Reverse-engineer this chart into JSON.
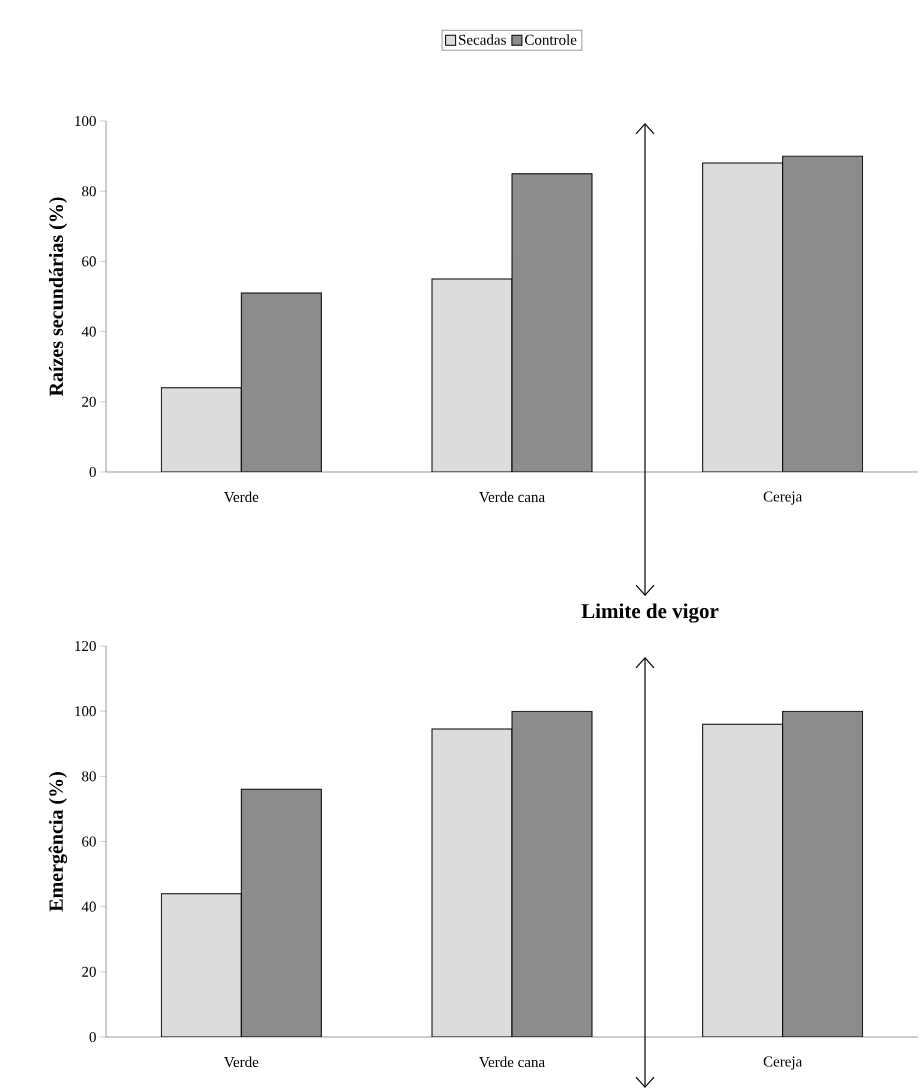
{
  "chart_data": [
    {
      "type": "bar",
      "categories": [
        "Verde",
        "Verde cana",
        "Cereja"
      ],
      "ylabel": "Raízes secundárias (%)",
      "ylim": [
        0,
        100
      ],
      "yticks": [
        0,
        20,
        40,
        60,
        80,
        100
      ],
      "legend": "top",
      "grid": false,
      "series": [
        {
          "name": "Secadas",
          "color": "#dcdcdc",
          "values": [
            24,
            55,
            88
          ]
        },
        {
          "name": "Controle",
          "color": "#8c8c8c",
          "values": [
            51,
            85,
            90
          ]
        }
      ]
    },
    {
      "type": "bar",
      "categories": [
        "Verde",
        "Verde cana",
        "Cereja"
      ],
      "ylabel": "Emergência (%)",
      "ylim": [
        0,
        120
      ],
      "yticks": [
        0,
        20,
        40,
        60,
        80,
        100,
        120
      ],
      "grid": false,
      "annotations": [
        "Limite de vigor"
      ],
      "series": [
        {
          "color": "#dcdcdc",
          "values": [
            44,
            94.5,
            96
          ]
        },
        {
          "color": "#8c8c8c",
          "values": [
            76,
            100,
            100
          ]
        }
      ]
    }
  ]
}
